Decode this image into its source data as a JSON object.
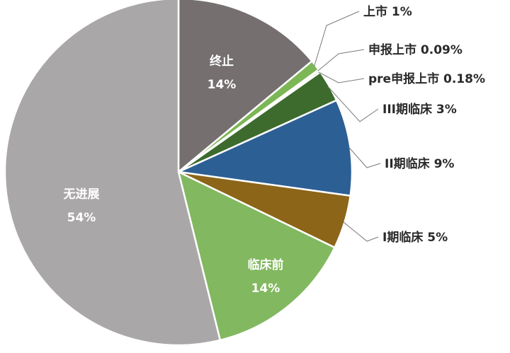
{
  "chart_data": {
    "type": "pie",
    "title": "",
    "start_category": "终止",
    "slices": [
      {
        "label": "终止",
        "value_label": "14%",
        "value": 14,
        "color": "#756f70",
        "label_pos": "inside"
      },
      {
        "label": "上市",
        "value_label": "1%",
        "value": 1,
        "color": "#7cb655",
        "label_pos": "outside"
      },
      {
        "label": "申报上市",
        "value_label": "0.09%",
        "value": 0.09,
        "color": "#5a9a3c",
        "label_pos": "outside"
      },
      {
        "label": "pre申报上市",
        "value_label": "0.18%",
        "value": 0.18,
        "color": "#4a7f33",
        "label_pos": "outside"
      },
      {
        "label": "III期临床",
        "value_label": "3%",
        "value": 3,
        "color": "#3d6b2d",
        "label_pos": "outside"
      },
      {
        "label": "II期临床",
        "value_label": "9%",
        "value": 9,
        "color": "#2c5f94",
        "label_pos": "outside"
      },
      {
        "label": "I期临床",
        "value_label": "5%",
        "value": 5,
        "color": "#8c6518",
        "label_pos": "outside"
      },
      {
        "label": "临床前",
        "value_label": "14%",
        "value": 14,
        "color": "#82b860",
        "label_pos": "inside"
      },
      {
        "label": "无进展",
        "value_label": "54%",
        "value": 54,
        "color": "#aaa7a9",
        "label_pos": "inside"
      }
    ]
  }
}
